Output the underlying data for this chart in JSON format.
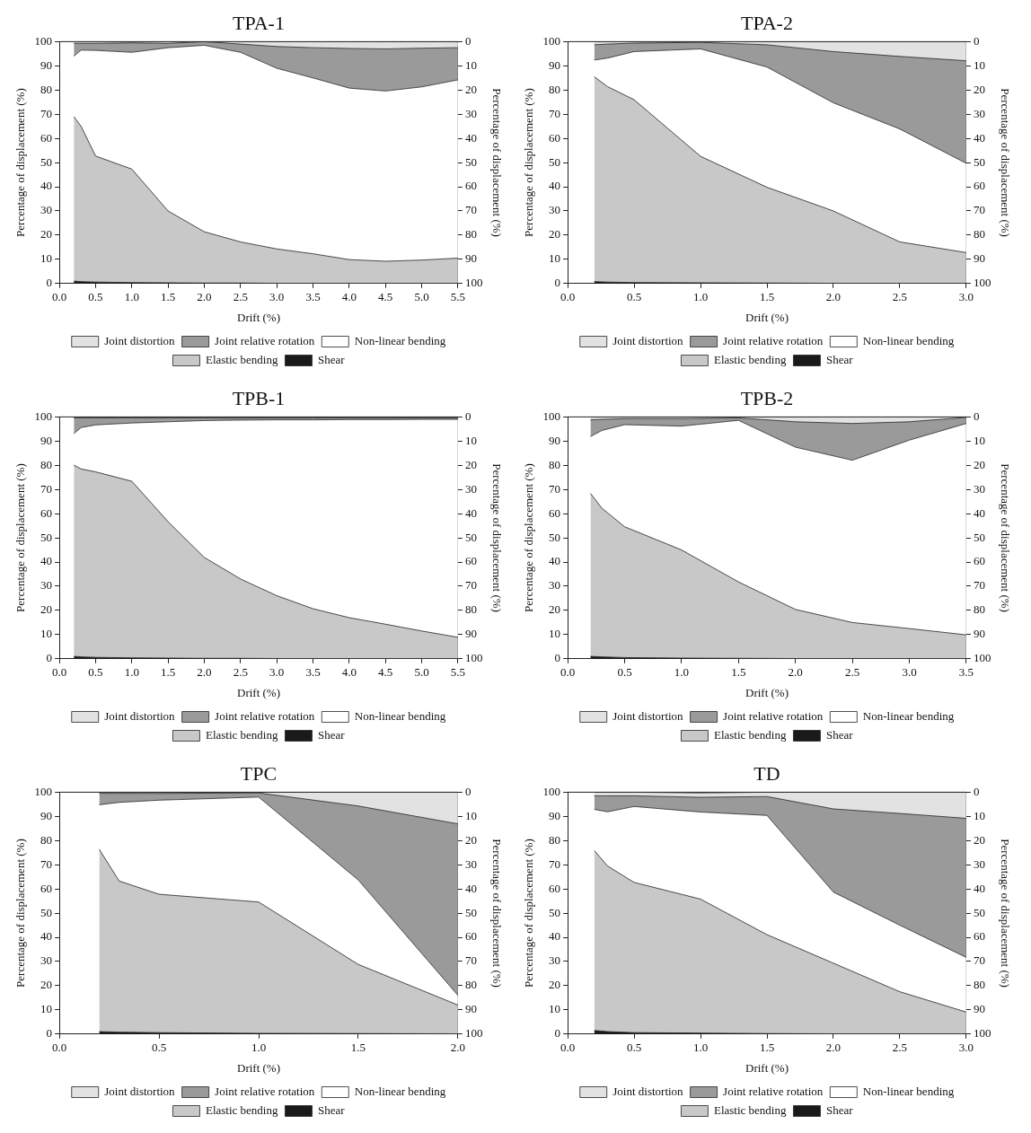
{
  "chart_data": [
    {
      "type": "area",
      "stacked": true,
      "title": "TPA-1",
      "xlabel": "Drift (%)",
      "ylabel": "Percentage of displacement (%)",
      "y2label": "Percentage of displacement (%)",
      "legend": "bottom",
      "grid": false,
      "x": [
        0.2,
        0.3,
        0.5,
        1.0,
        1.5,
        2.0,
        2.5,
        3.0,
        3.5,
        4.0,
        4.5,
        5.0,
        5.5
      ],
      "series": [
        {
          "name": "Shear",
          "color": "#1a1a1a",
          "values": [
            1,
            0.8,
            0.6,
            0.4,
            0.3,
            0.2,
            0.2,
            0.1,
            0.1,
            0.1,
            0.1,
            0.1,
            0.1
          ]
        },
        {
          "name": "Elastic bending",
          "color": "#c8c8c8",
          "values": [
            68,
            64.2,
            52.1,
            46.9,
            29.7,
            21.2,
            17,
            14.2,
            12.2,
            9.8,
            9.1,
            9.6,
            10.4
          ]
        },
        {
          "name": "Non-linear bending",
          "color": "#ffffff",
          "values": [
            25,
            31.5,
            43.7,
            48.3,
            67.5,
            77.1,
            78.4,
            74.7,
            72.7,
            70.9,
            70.4,
            71.6,
            73.7
          ]
        },
        {
          "name": "Joint relative rotation",
          "color": "#9a9a9a",
          "values": [
            5.3,
            2.8,
            2.9,
            3.9,
            1.8,
            1.5,
            3.4,
            9,
            12.5,
            16.4,
            17.4,
            16,
            13.3
          ]
        },
        {
          "name": "Joint distortion",
          "color": "#e2e2e2",
          "values": [
            0.7,
            0.7,
            0.7,
            0.5,
            0.7,
            0,
            1,
            2,
            2.5,
            2.8,
            3,
            2.7,
            2.5
          ]
        }
      ],
      "xlim": [
        0,
        5.5
      ],
      "xticks": [
        {
          "value": 0,
          "label": "0.0"
        },
        0.5,
        {
          "value": 1,
          "label": "1.0"
        },
        1.5,
        {
          "value": 2,
          "label": "2.0"
        },
        2.5,
        {
          "value": 3,
          "label": "3.0"
        },
        3.5,
        {
          "value": 4,
          "label": "4.0"
        },
        4.5,
        {
          "value": 5,
          "label": "5.0"
        },
        5.5
      ],
      "ylim": [
        0,
        100
      ],
      "yticks": [
        0,
        10,
        20,
        30,
        40,
        50,
        60,
        70,
        80,
        90,
        100
      ],
      "y2lim": [
        100,
        0
      ],
      "y2ticks": [
        0,
        10,
        20,
        30,
        40,
        50,
        60,
        70,
        80,
        90,
        100
      ]
    },
    {
      "type": "area",
      "stacked": true,
      "title": "TPA-2",
      "xlabel": "Drift (%)",
      "ylabel": "Percentage of displacement (%)",
      "y2label": "Percentage of displacement (%)",
      "legend": "bottom",
      "grid": false,
      "x": [
        0.2,
        0.3,
        0.5,
        1.0,
        1.5,
        2.0,
        2.5,
        3.0
      ],
      "series": [
        {
          "name": "Shear",
          "color": "#1a1a1a",
          "values": [
            0.8,
            0.6,
            0.4,
            0.3,
            0.2,
            0.1,
            0.1,
            0.1
          ]
        },
        {
          "name": "Elastic bending",
          "color": "#c8c8c8",
          "values": [
            84.7,
            80.8,
            75.6,
            52.3,
            39.6,
            29.9,
            17.1,
            12.7
          ]
        },
        {
          "name": "Non-linear bending",
          "color": "#ffffff",
          "values": [
            6.9,
            11.8,
            19.9,
            44.4,
            49.7,
            44.7,
            46.7,
            36.9
          ]
        },
        {
          "name": "Joint relative rotation",
          "color": "#9a9a9a",
          "values": [
            6.3,
            5.8,
            3.5,
            2.7,
            9.2,
            21.2,
            30,
            42.4
          ]
        },
        {
          "name": "Joint distortion",
          "color": "#e2e2e2",
          "values": [
            1.3,
            1,
            0.6,
            0.3,
            1.3,
            4.1,
            6.1,
            7.9
          ]
        }
      ],
      "xlim": [
        0,
        3
      ],
      "xticks": [
        {
          "value": 0,
          "label": "0.0"
        },
        0.5,
        {
          "value": 1,
          "label": "1.0"
        },
        1.5,
        {
          "value": 2,
          "label": "2.0"
        },
        2.5,
        {
          "value": 3,
          "label": "3.0"
        }
      ],
      "ylim": [
        0,
        100
      ],
      "yticks": [
        0,
        10,
        20,
        30,
        40,
        50,
        60,
        70,
        80,
        90,
        100
      ],
      "y2lim": [
        100,
        0
      ],
      "y2ticks": [
        0,
        10,
        20,
        30,
        40,
        50,
        60,
        70,
        80,
        90,
        100
      ]
    },
    {
      "type": "area",
      "stacked": true,
      "title": "TPB-1",
      "xlabel": "Drift (%)",
      "ylabel": "Percentage of displacement (%)",
      "y2label": "Percentage of displacement (%)",
      "legend": "bottom",
      "grid": false,
      "x": [
        0.2,
        0.3,
        0.5,
        1.0,
        1.5,
        2.0,
        2.5,
        3.0,
        3.5,
        4.0,
        4.5,
        5.0,
        5.5
      ],
      "series": [
        {
          "name": "Shear",
          "color": "#1a1a1a",
          "values": [
            1,
            0.8,
            0.6,
            0.4,
            0.3,
            0.2,
            0.2,
            0.1,
            0.1,
            0.1,
            0.1,
            0.1,
            0.1
          ]
        },
        {
          "name": "Elastic bending",
          "color": "#c8c8c8",
          "values": [
            79.1,
            77.7,
            76.7,
            73,
            56.4,
            41.7,
            32.8,
            26,
            20.6,
            16.9,
            14.2,
            11.4,
            8.8
          ]
        },
        {
          "name": "Non-linear bending",
          "color": "#ffffff",
          "values": [
            13,
            17.1,
            19.4,
            24.1,
            41.3,
            56.6,
            65.7,
            72.7,
            78.1,
            81.9,
            84.6,
            87.5,
            90.1
          ]
        },
        {
          "name": "Joint relative rotation",
          "color": "#9a9a9a",
          "values": [
            6.5,
            4,
            2.9,
            2.1,
            1.6,
            1.1,
            0.9,
            0.8,
            0.8,
            0.7,
            0.7,
            0.6,
            0.6
          ]
        },
        {
          "name": "Joint distortion",
          "color": "#e2e2e2",
          "values": [
            0.4,
            0.4,
            0.4,
            0.4,
            0.4,
            0.4,
            0.4,
            0.4,
            0.4,
            0.4,
            0.4,
            0.4,
            0.4
          ]
        }
      ],
      "xlim": [
        0,
        5.5
      ],
      "xticks": [
        {
          "value": 0,
          "label": "0.0"
        },
        0.5,
        {
          "value": 1,
          "label": "1.0"
        },
        1.5,
        {
          "value": 2,
          "label": "2.0"
        },
        2.5,
        {
          "value": 3,
          "label": "3.0"
        },
        3.5,
        {
          "value": 4,
          "label": "4.0"
        },
        4.5,
        {
          "value": 5,
          "label": "5.0"
        },
        5.5
      ],
      "ylim": [
        0,
        100
      ],
      "yticks": [
        0,
        10,
        20,
        30,
        40,
        50,
        60,
        70,
        80,
        90,
        100
      ],
      "y2lim": [
        100,
        0
      ],
      "y2ticks": [
        0,
        10,
        20,
        30,
        40,
        50,
        60,
        70,
        80,
        90,
        100
      ]
    },
    {
      "type": "area",
      "stacked": true,
      "title": "TPB-2",
      "xlabel": "Drift (%)",
      "ylabel": "Percentage of displacement (%)",
      "y2label": "Percentage of displacement (%)",
      "legend": "bottom",
      "grid": false,
      "x": [
        0.2,
        0.3,
        0.5,
        1.0,
        1.5,
        2.0,
        2.5,
        3.0,
        3.5
      ],
      "series": [
        {
          "name": "Shear",
          "color": "#1a1a1a",
          "values": [
            1,
            0.8,
            0.5,
            0.3,
            0.2,
            0.1,
            0.1,
            0.1,
            0.1
          ]
        },
        {
          "name": "Elastic bending",
          "color": "#c8c8c8",
          "values": [
            67.4,
            61.5,
            54.1,
            44.7,
            31.6,
            20.3,
            14.9,
            12.4,
            9.8
          ]
        },
        {
          "name": "Non-linear bending",
          "color": "#ffffff",
          "values": [
            23.5,
            32.1,
            42.2,
            51.2,
            66.8,
            67.1,
            67.1,
            77.9,
            87.4
          ]
        },
        {
          "name": "Joint relative rotation",
          "color": "#9a9a9a",
          "values": [
            6.9,
            4.6,
            2.5,
            3.1,
            1,
            10.5,
            15.2,
            7.6,
            2.5
          ]
        },
        {
          "name": "Joint distortion",
          "color": "#e2e2e2",
          "values": [
            1.2,
            1,
            0.7,
            0.7,
            0.4,
            2,
            2.7,
            2,
            0.2
          ]
        }
      ],
      "xlim": [
        0,
        3.5
      ],
      "xticks": [
        {
          "value": 0,
          "label": "0.0"
        },
        0.5,
        {
          "value": 1,
          "label": "1.0"
        },
        1.5,
        {
          "value": 2,
          "label": "2.0"
        },
        2.5,
        {
          "value": 3,
          "label": "3.0"
        },
        3.5
      ],
      "ylim": [
        0,
        100
      ],
      "yticks": [
        0,
        10,
        20,
        30,
        40,
        50,
        60,
        70,
        80,
        90,
        100
      ],
      "y2lim": [
        100,
        0
      ],
      "y2ticks": [
        0,
        10,
        20,
        30,
        40,
        50,
        60,
        70,
        80,
        90,
        100
      ]
    },
    {
      "type": "area",
      "stacked": true,
      "title": "TPC",
      "xlabel": "Drift (%)",
      "ylabel": "Percentage of displacement (%)",
      "y2label": "Percentage of displacement (%)",
      "legend": "bottom",
      "grid": false,
      "x": [
        0.2,
        0.3,
        0.5,
        1.0,
        1.5,
        2.0
      ],
      "series": [
        {
          "name": "Shear",
          "color": "#1a1a1a",
          "values": [
            1,
            0.8,
            0.6,
            0.3,
            0.2,
            0.1
          ]
        },
        {
          "name": "Elastic bending",
          "color": "#c8c8c8",
          "values": [
            75.4,
            62.5,
            57.2,
            54.3,
            28.6,
            11.9
          ]
        },
        {
          "name": "Non-linear bending",
          "color": "#ffffff",
          "values": [
            18.4,
            32.5,
            38.9,
            43.4,
            34.9,
            4
          ]
        },
        {
          "name": "Joint relative rotation",
          "color": "#9a9a9a",
          "values": [
            4.7,
            3.7,
            2.8,
            1.7,
            30.6,
            70.9
          ]
        },
        {
          "name": "Joint distortion",
          "color": "#e2e2e2",
          "values": [
            0.5,
            0.5,
            0.5,
            0.3,
            5.7,
            13.1
          ]
        }
      ],
      "xlim": [
        0,
        2
      ],
      "xticks": [
        {
          "value": 0,
          "label": "0.0"
        },
        0.5,
        {
          "value": 1,
          "label": "1.0"
        },
        1.5,
        {
          "value": 2,
          "label": "2.0"
        }
      ],
      "ylim": [
        0,
        100
      ],
      "yticks": [
        0,
        10,
        20,
        30,
        40,
        50,
        60,
        70,
        80,
        90,
        100
      ],
      "y2lim": [
        100,
        0
      ],
      "y2ticks": [
        0,
        10,
        20,
        30,
        40,
        50,
        60,
        70,
        80,
        90,
        100
      ]
    },
    {
      "type": "area",
      "stacked": true,
      "title": "TD",
      "xlabel": "Drift (%)",
      "ylabel": "Percentage of displacement (%)",
      "y2label": "Percentage of displacement (%)",
      "legend": "bottom",
      "grid": false,
      "x": [
        0.2,
        0.3,
        0.5,
        1.0,
        1.5,
        2.0,
        2.5,
        3.0
      ],
      "series": [
        {
          "name": "Shear",
          "color": "#1a1a1a",
          "values": [
            1.5,
            1,
            0.6,
            0.4,
            0.2,
            0.1,
            0.1,
            0.1
          ]
        },
        {
          "name": "Elastic bending",
          "color": "#c8c8c8",
          "values": [
            74.4,
            68.5,
            62.1,
            55.4,
            40.9,
            29.2,
            17.4,
            9
          ]
        },
        {
          "name": "Non-linear bending",
          "color": "#ffffff",
          "values": [
            17,
            22.4,
            31.4,
            36,
            49.3,
            29.4,
            27.5,
            22.6
          ]
        },
        {
          "name": "Joint relative rotation",
          "color": "#9a9a9a",
          "values": [
            5.6,
            6.6,
            4.4,
            6.1,
            7.8,
            34.4,
            46.2,
            57.5
          ]
        },
        {
          "name": "Joint distortion",
          "color": "#e2e2e2",
          "values": [
            1.5,
            1.5,
            1.5,
            1.8,
            1.8,
            6.9,
            8.8,
            10.8
          ]
        }
      ],
      "xlim": [
        0,
        3
      ],
      "xticks": [
        {
          "value": 0,
          "label": "0.0"
        },
        0.5,
        {
          "value": 1,
          "label": "1.0"
        },
        1.5,
        {
          "value": 2,
          "label": "2.0"
        },
        2.5,
        {
          "value": 3,
          "label": "3.0"
        }
      ],
      "ylim": [
        0,
        100
      ],
      "yticks": [
        0,
        10,
        20,
        30,
        40,
        50,
        60,
        70,
        80,
        90,
        100
      ],
      "y2lim": [
        100,
        0
      ],
      "y2ticks": [
        0,
        10,
        20,
        30,
        40,
        50,
        60,
        70,
        80,
        90,
        100
      ]
    }
  ]
}
